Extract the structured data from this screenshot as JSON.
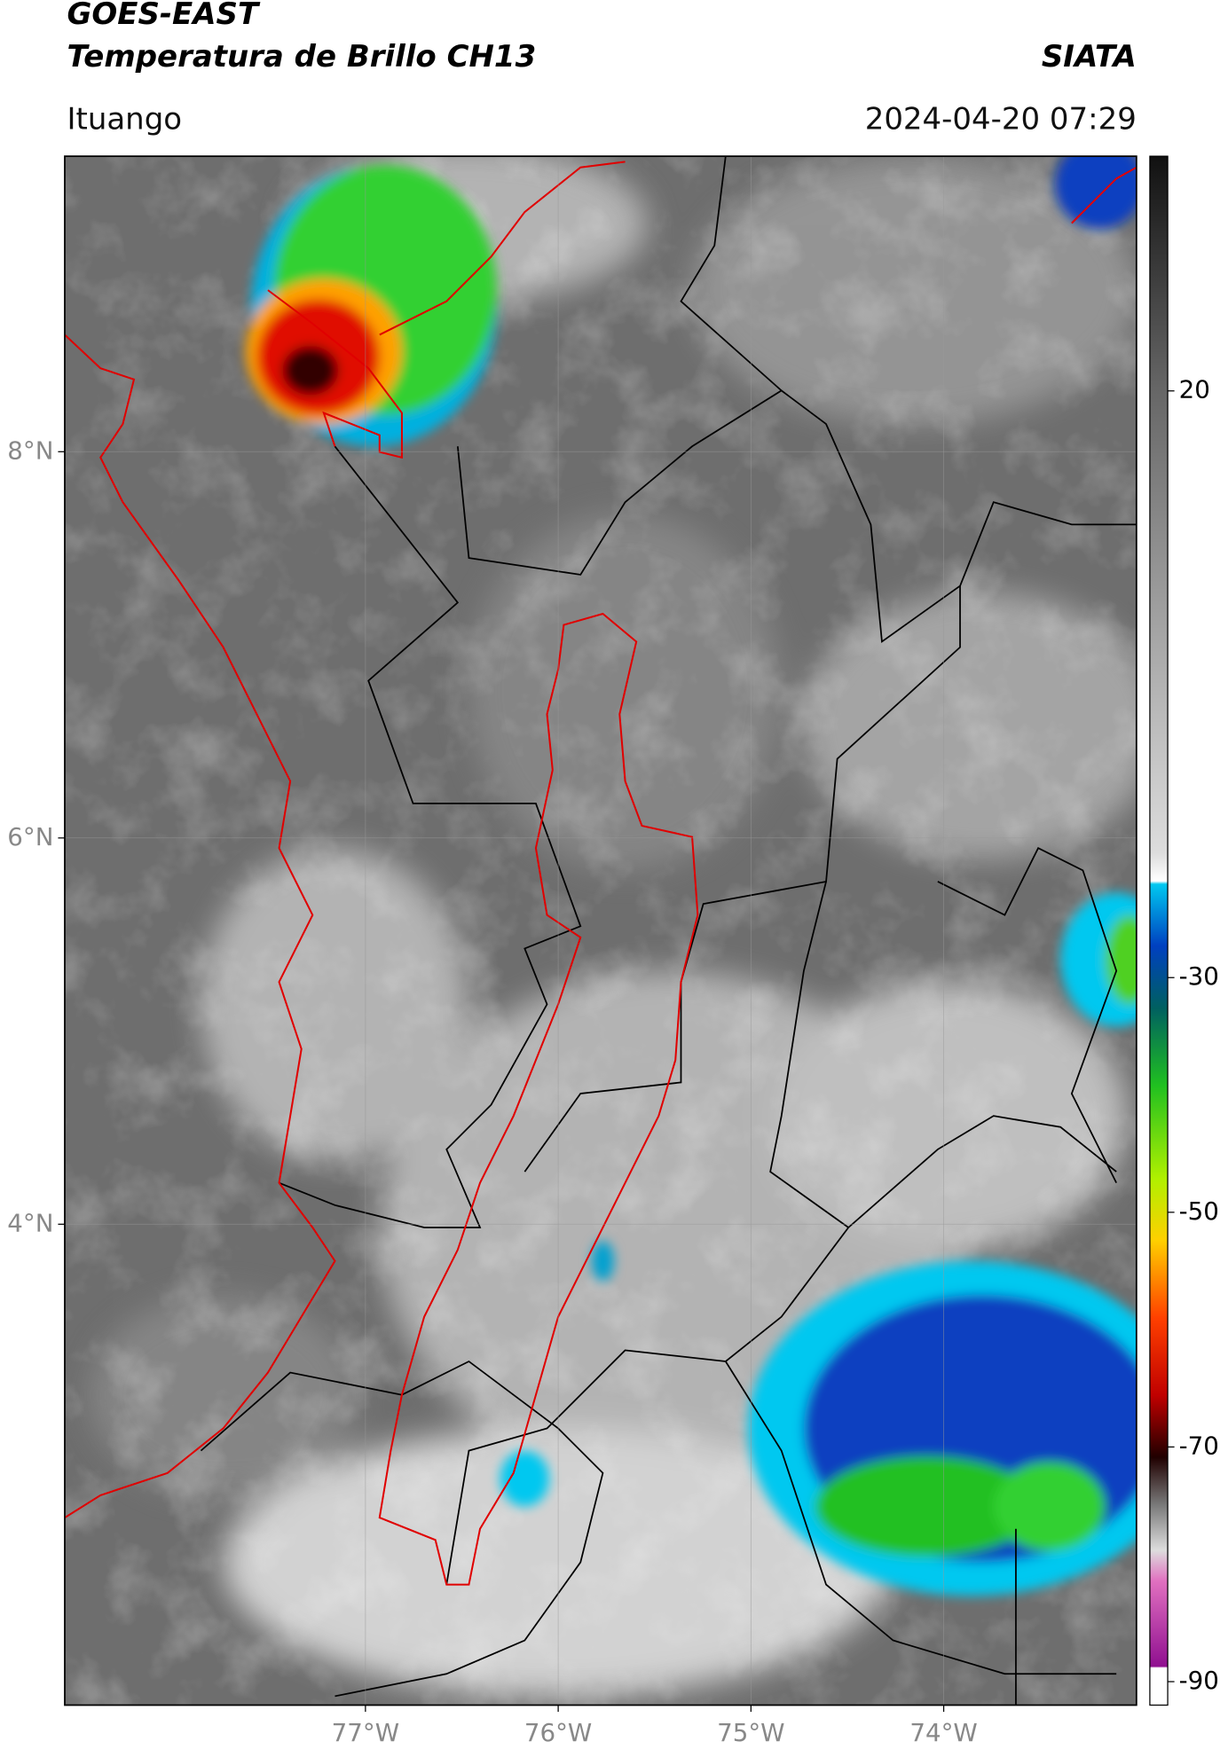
{
  "header": {
    "title": "GOES-EAST",
    "subtitle": "Temperatura de Brillo CH13",
    "agency": "SIATA",
    "location": "Ituango",
    "timestamp": "2024-04-20 07:29"
  },
  "map": {
    "xlim": [
      -78.56,
      -73.0
    ],
    "ylim": [
      1.51,
      9.53
    ],
    "xticks": [
      {
        "value": -77,
        "label": "77°W"
      },
      {
        "value": -76,
        "label": "76°W"
      },
      {
        "value": -75,
        "label": "75°W"
      },
      {
        "value": -74,
        "label": "74°W"
      }
    ],
    "yticks": [
      {
        "value": 8,
        "label": "8°N"
      },
      {
        "value": 6,
        "label": "6°N"
      },
      {
        "value": 4,
        "label": "4°N"
      }
    ],
    "grid": true
  },
  "colorbar": {
    "clim": [
      -92,
      40
    ],
    "ticks": [
      20,
      -30,
      -50,
      -70,
      -90
    ]
  }
}
